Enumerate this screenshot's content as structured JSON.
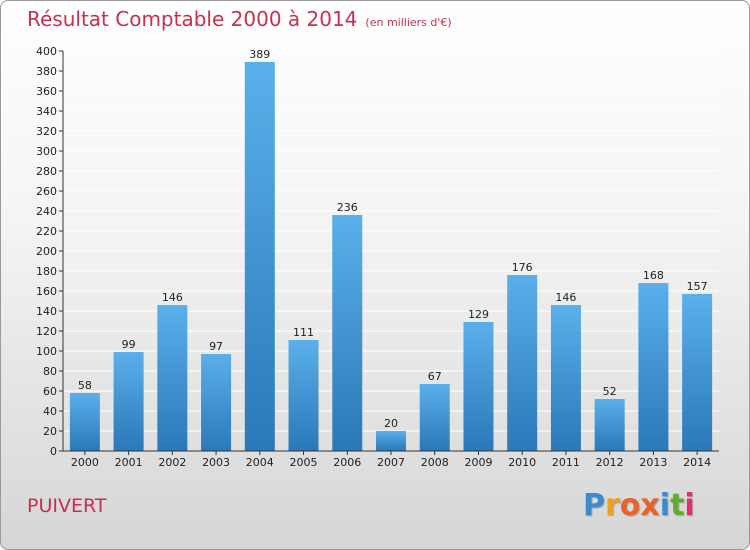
{
  "header": {
    "title": "Résultat Comptable 2000 à 2014",
    "subtitle": "(en milliers d'€)"
  },
  "commune": "PUIVERT",
  "logo": {
    "letters": [
      "P",
      "r",
      "o",
      "x",
      "i",
      "t",
      "i"
    ]
  },
  "colors": {
    "title": "#c8304c",
    "bar_top": "#5ab0ea",
    "bar_bottom": "#2a78b8",
    "grid": "#ffffff",
    "logo": [
      "#3a8ccf",
      "#f0a020",
      "#e8632a",
      "#e8632a",
      "#3a8ccf",
      "#5ab030",
      "#e03070"
    ]
  },
  "chart_data": {
    "type": "bar",
    "title": "Résultat Comptable 2000 à 2014",
    "xlabel": "",
    "ylabel": "",
    "ylim": [
      0,
      400
    ],
    "ytick_step": 20,
    "categories": [
      "2000",
      "2001",
      "2002",
      "2003",
      "2004",
      "2005",
      "2006",
      "2007",
      "2008",
      "2009",
      "2010",
      "2011",
      "2012",
      "2013",
      "2014"
    ],
    "values": [
      58,
      99,
      146,
      97,
      389,
      111,
      236,
      20,
      67,
      129,
      176,
      146,
      52,
      168,
      157
    ]
  }
}
